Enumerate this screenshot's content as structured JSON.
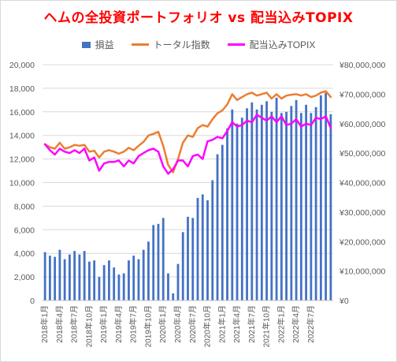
{
  "chart_data": {
    "type": "bar",
    "title": "ヘムの全投資ポートフォリオ vs 配当込みTOPIX",
    "legend_position": "top",
    "series": [
      {
        "name": "損益",
        "type": "bar",
        "axis": "left",
        "color": "#4472c4",
        "values": [
          4100,
          3800,
          3700,
          4300,
          3500,
          3900,
          4200,
          3900,
          4200,
          3300,
          3400,
          2000,
          3000,
          3400,
          2800,
          2200,
          2300,
          3400,
          3800,
          3500,
          4300,
          5000,
          6400,
          6500,
          7000,
          2300,
          600,
          3100,
          5800,
          7100,
          7000,
          8700,
          9000,
          8500,
          10200,
          12400,
          13200,
          14600,
          16200,
          15000,
          15500,
          16300,
          16800,
          16200,
          16600,
          16900,
          16000,
          17200,
          15900,
          16000,
          16500,
          17000,
          15900,
          16600,
          15900,
          16400,
          17400,
          17600,
          15800
        ]
      },
      {
        "name": "トータル指数",
        "type": "line",
        "axis": "right",
        "color": "#ed7d31",
        "values": [
          53000000,
          52000000,
          51500000,
          53500000,
          51500000,
          52000000,
          52800000,
          52500000,
          52800000,
          50500000,
          50800000,
          48500000,
          50500000,
          51000000,
          50500000,
          49800000,
          50500000,
          51800000,
          51000000,
          52500000,
          53800000,
          56000000,
          56500000,
          57200000,
          52500000,
          46000000,
          43500000,
          48000000,
          53500000,
          56000000,
          55500000,
          58500000,
          59500000,
          59000000,
          61500000,
          63500000,
          64500000,
          66500000,
          70000000,
          68000000,
          69000000,
          70000000,
          70500000,
          69500000,
          70000000,
          70500000,
          68500000,
          70000000,
          68500000,
          69500000,
          69800000,
          70000000,
          69500000,
          70000000,
          69000000,
          69500000,
          70500000,
          71000000,
          69000000
        ]
      },
      {
        "name": "配当込みTOPIX",
        "type": "line",
        "axis": "right",
        "color": "#ff00ff",
        "values": [
          53000000,
          51000000,
          49500000,
          51500000,
          50500000,
          50000000,
          51000000,
          50000000,
          51500000,
          47500000,
          48500000,
          44000000,
          46500000,
          47000000,
          47000000,
          47500000,
          45500000,
          47500000,
          46500000,
          49000000,
          50000000,
          51000000,
          51500000,
          50500000,
          45500000,
          43000000,
          44500000,
          47500000,
          47500000,
          45500000,
          49000000,
          49500000,
          48000000,
          54000000,
          54500000,
          55500000,
          55000000,
          57500000,
          60500000,
          59000000,
          59500000,
          61000000,
          60500000,
          63000000,
          62000000,
          61000000,
          62500000,
          60500000,
          62500000,
          59500000,
          60000000,
          61500000,
          59000000,
          60000000,
          59500000,
          62000000,
          61500000,
          62500000,
          58500000
        ]
      }
    ],
    "x_tick_labels": [
      "2018年1月",
      "2018年4月",
      "2018年7月",
      "2018年10月",
      "2019年1月",
      "2019年4月",
      "2019年7月",
      "2019年10月",
      "2020年1月",
      "2020年4月",
      "2020年7月",
      "2020年10月",
      "2021年1月",
      "2021年4月",
      "2021年7月",
      "2021年10月",
      "2022年1月",
      "2022年4月",
      "2022年7月"
    ],
    "y_left": {
      "min": 0,
      "max": 20000,
      "step": 2000,
      "tick_labels": [
        "0",
        "2,000",
        "4,000",
        "6,000",
        "8,000",
        "10,000",
        "12,000",
        "14,000",
        "16,000",
        "18,000",
        "20,000"
      ]
    },
    "y_right": {
      "min": 0,
      "max": 80000000,
      "step": 10000000,
      "tick_labels": [
        "¥0",
        "¥10,000,000",
        "¥20,000,000",
        "¥30,000,000",
        "¥40,000,000",
        "¥50,000,000",
        "¥60,000,000",
        "¥70,000,000",
        "¥80,000,000"
      ]
    },
    "grid": true
  }
}
